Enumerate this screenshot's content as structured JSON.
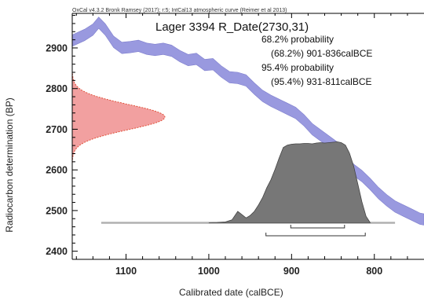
{
  "header": "OxCal v4.3.2 Bronk Ramsey (2017); r:5; IntCal13 atmospheric curve (Reimer et al 2013)",
  "chart_data": {
    "type": "area",
    "title": "Lager 3394 R_Date(2730,31)",
    "xlabel": "Calibrated date (calBCE)",
    "ylabel": "Radiocarbon determination (BP)",
    "xlim": [
      1165,
      740
    ],
    "ylim": [
      2380,
      2985
    ],
    "x_ticks": [
      1100,
      1000,
      900,
      800
    ],
    "y_ticks": [
      2400,
      2500,
      2600,
      2700,
      2800,
      2900
    ],
    "grid": false,
    "annotations": [
      {
        "label": "68.2% probability",
        "range_label": "(68.2%) 901-836calBCE",
        "from": 901,
        "to": 836
      },
      {
        "label": "95.4% probability",
        "range_label": "(95.4%) 931-811calBCE",
        "from": 931,
        "to": 811
      }
    ],
    "radiocarbon_date": {
      "mean": 2730,
      "sigma": 31,
      "color": "#f2a0a0",
      "edge_color": "#e0503a"
    },
    "calibration_curve": {
      "name": "IntCal13",
      "color": "#8f8fdc",
      "x": [
        1165,
        1150,
        1140,
        1133,
        1125,
        1115,
        1105,
        1095,
        1085,
        1075,
        1065,
        1055,
        1045,
        1035,
        1025,
        1015,
        1005,
        995,
        985,
        975,
        965,
        955,
        945,
        935,
        925,
        915,
        905,
        895,
        885,
        875,
        865,
        855,
        845,
        835,
        825,
        815,
        805,
        795,
        785,
        775,
        765,
        755,
        745,
        740
      ],
      "y": [
        2918,
        2932,
        2945,
        2962,
        2945,
        2915,
        2900,
        2902,
        2905,
        2898,
        2895,
        2898,
        2893,
        2880,
        2870,
        2873,
        2858,
        2860,
        2842,
        2828,
        2826,
        2820,
        2800,
        2782,
        2770,
        2760,
        2750,
        2740,
        2722,
        2700,
        2685,
        2670,
        2655,
        2628,
        2600,
        2585,
        2565,
        2543,
        2525,
        2510,
        2500,
        2490,
        2480,
        2478
      ],
      "band": 14
    },
    "calibrated_distribution": {
      "color": "#777777",
      "baseline_bp": 2470,
      "x": [
        1000,
        990,
        980,
        972,
        965,
        960,
        955,
        950,
        945,
        940,
        935,
        930,
        925,
        920,
        915,
        910,
        905,
        900,
        895,
        890,
        885,
        880,
        875,
        870,
        865,
        860,
        855,
        850,
        845,
        840,
        835,
        830,
        825,
        820,
        815,
        810,
        805
      ],
      "density": [
        0,
        0.002,
        0.01,
        0.035,
        0.14,
        0.1,
        0.06,
        0.09,
        0.14,
        0.22,
        0.31,
        0.43,
        0.53,
        0.66,
        0.8,
        0.93,
        0.96,
        0.97,
        0.975,
        0.975,
        0.98,
        0.98,
        0.975,
        0.985,
        0.99,
        0.985,
        0.99,
        0.995,
        1.0,
        0.99,
        0.96,
        0.86,
        0.7,
        0.48,
        0.26,
        0.08,
        0
      ]
    }
  }
}
